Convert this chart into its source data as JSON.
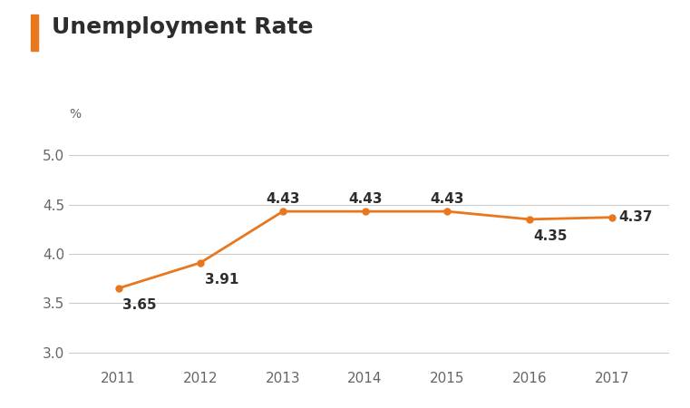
{
  "title": "Unemployment Rate",
  "pct_label": "%",
  "years": [
    2011,
    2012,
    2013,
    2014,
    2015,
    2016,
    2017
  ],
  "values": [
    3.65,
    3.91,
    4.43,
    4.43,
    4.43,
    4.35,
    4.37
  ],
  "line_color": "#E8771E",
  "title_color": "#2d2d2d",
  "title_bar_color": "#E8771E",
  "label_color": "#2d2d2d",
  "axis_label_color": "#666666",
  "grid_color": "#cccccc",
  "background_color": "#ffffff",
  "ylim_min": 2.85,
  "ylim_max": 5.25,
  "yticks": [
    3.0,
    3.5,
    4.0,
    4.5,
    5.0
  ],
  "title_fontsize": 18,
  "pct_fontsize": 10,
  "tick_fontsize": 11,
  "data_label_fontsize": 11,
  "line_width": 2.0,
  "marker_size": 5
}
